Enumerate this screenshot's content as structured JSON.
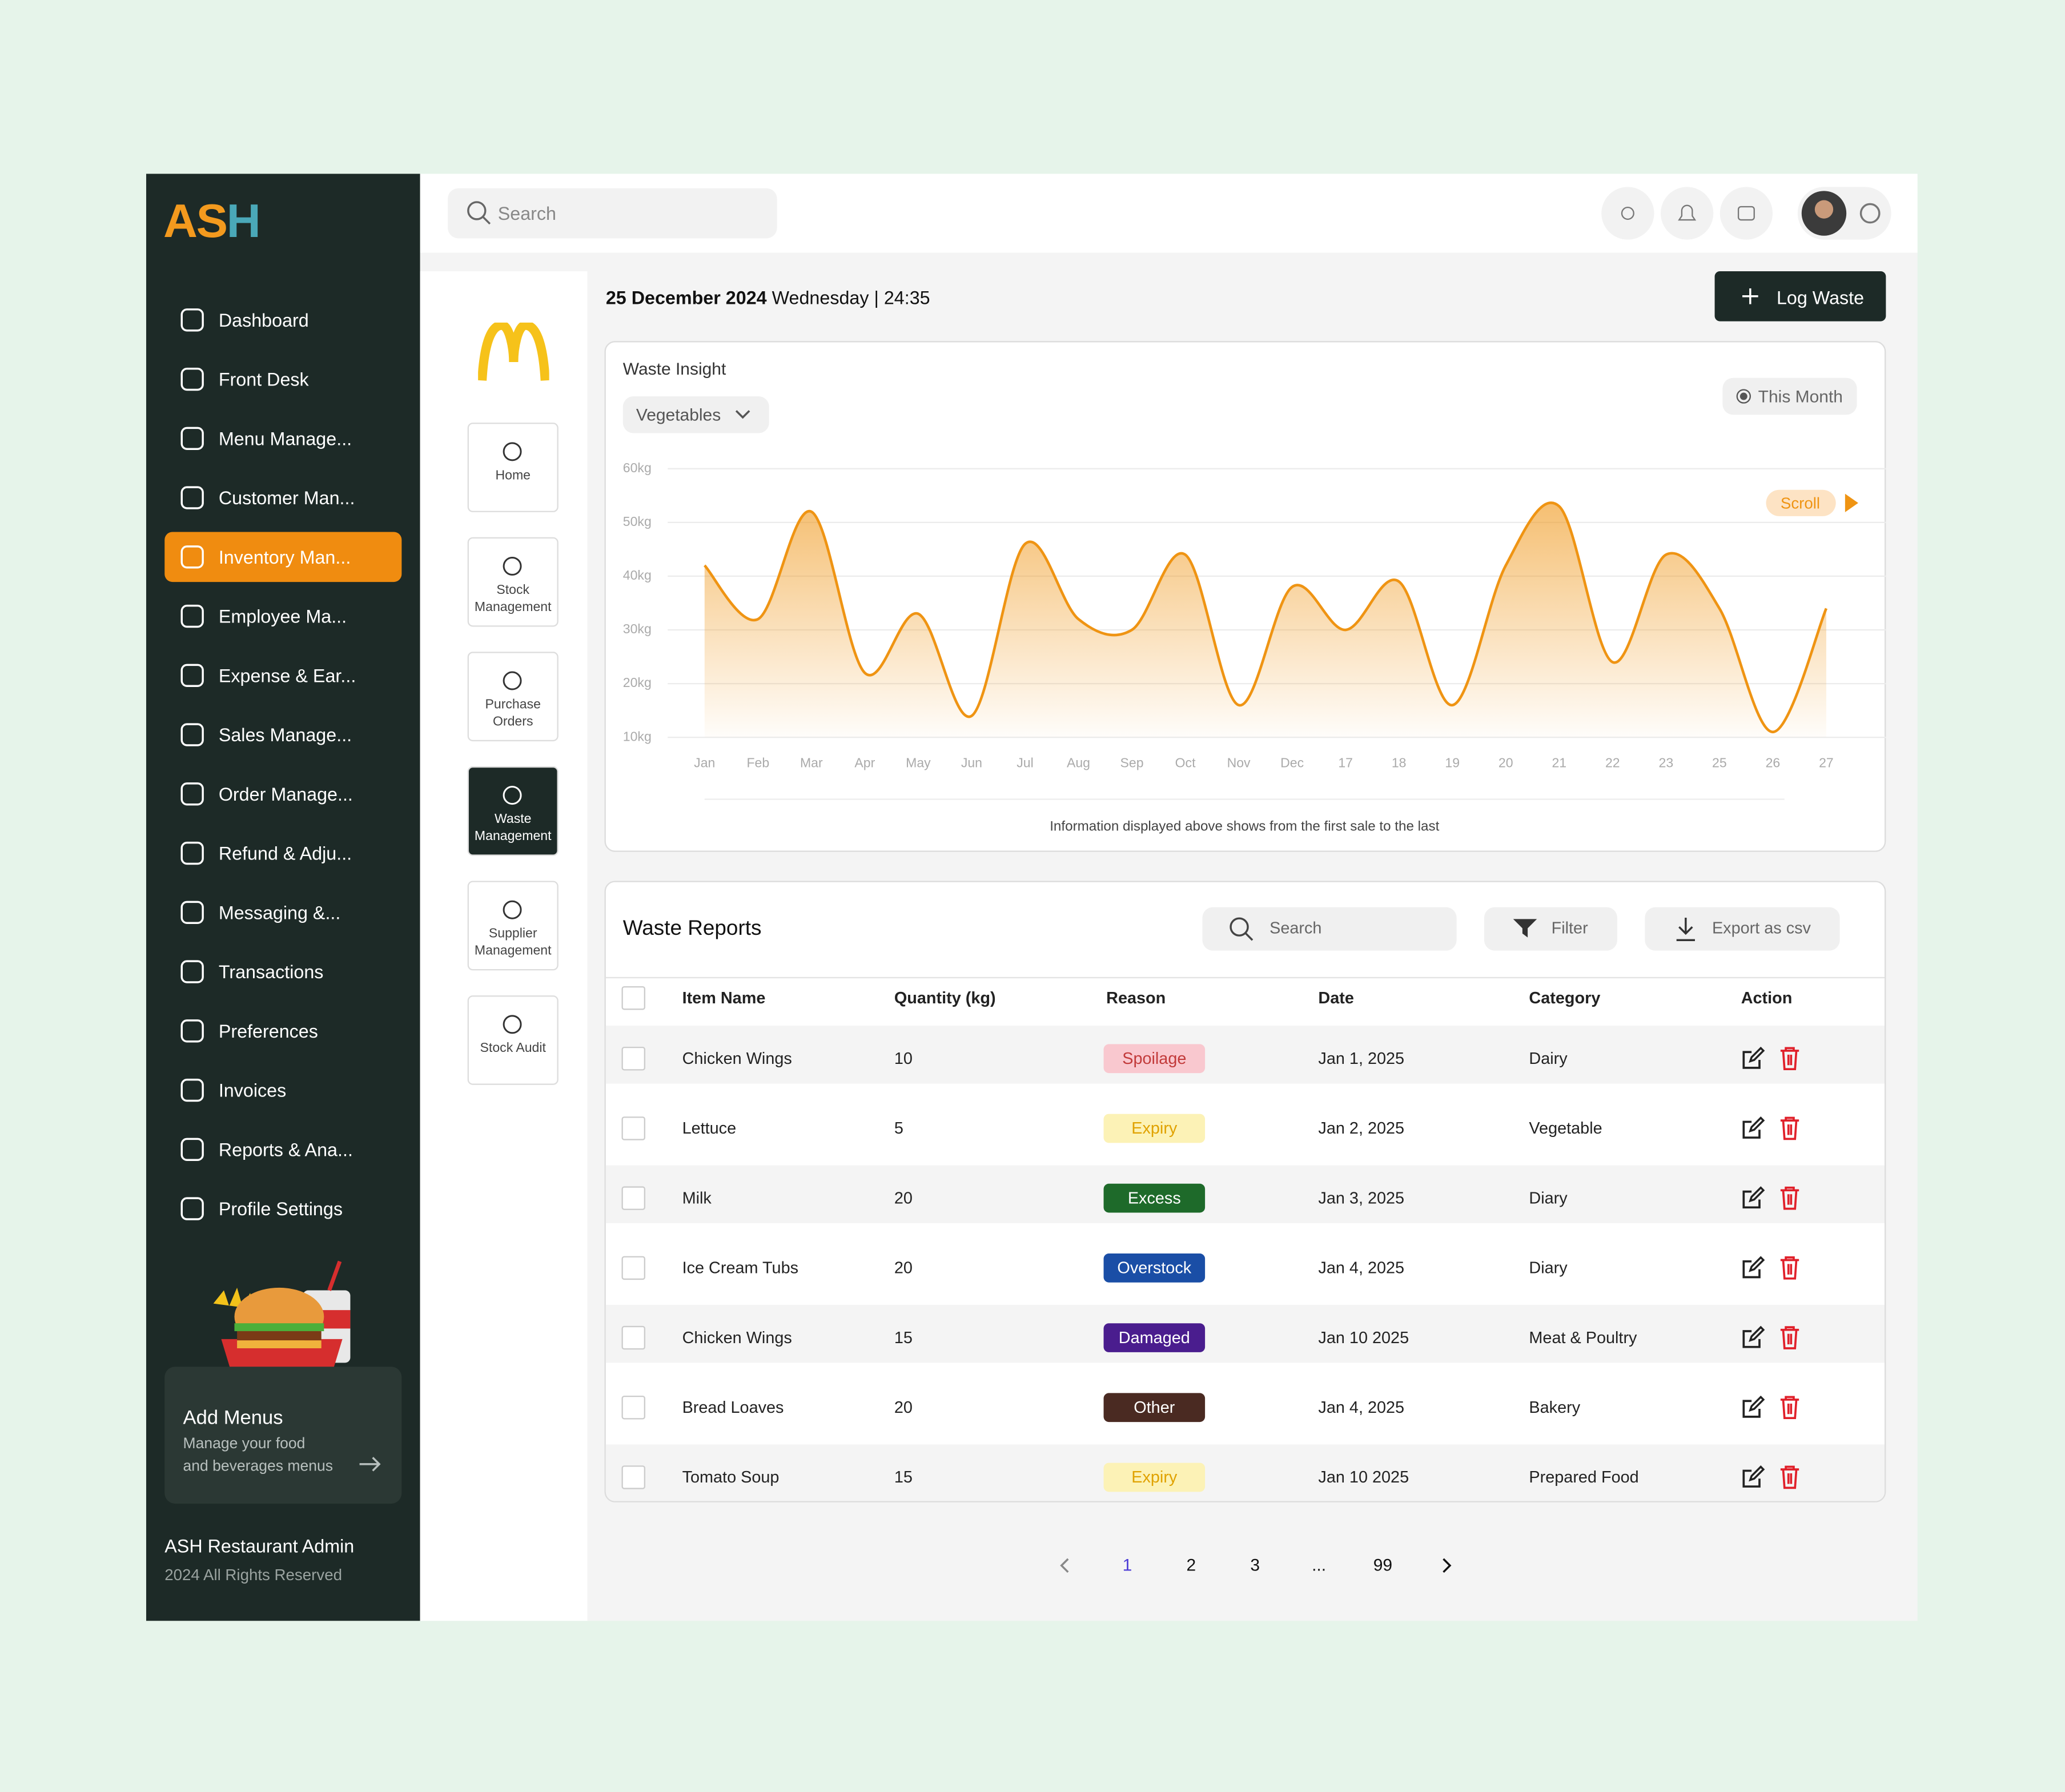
{
  "brand": {
    "logo_primary": "AS",
    "logo_accent": "H",
    "footer_title": "ASH Restaurant Admin",
    "footer_note": "2024 All Rights Reserved"
  },
  "nav": [
    "Dashboard",
    "Front Desk",
    "Menu Manage...",
    "Customer Man...",
    "Inventory Man...",
    "Employee Ma...",
    "Expense & Ear...",
    "Sales Manage...",
    "Order Manage...",
    "Refund & Adju...",
    "Messaging &...",
    "Transactions",
    "Preferences",
    "Invoices",
    "Reports & Ana...",
    "Profile Settings"
  ],
  "nav_active": 4,
  "promo": {
    "title": "Add Menus",
    "text": [
      "Manage your food",
      "and beverages menus"
    ]
  },
  "topbar": {
    "search_placeholder": "Search"
  },
  "modules": [
    "Home",
    "Stock Management",
    "Purchase Orders",
    "Waste Management",
    "Supplier Management",
    "Stock Audit"
  ],
  "module_active": 3,
  "header": {
    "date": "25 December 2024",
    "rest": "Wednesday | 24:35",
    "button": "Log Waste"
  },
  "waste_insight": {
    "type": "area",
    "title": "Waste Insight",
    "filter": "Vegetables",
    "period": "This Month",
    "scroll_label": "Scroll",
    "categories": [
      "Jan",
      "Feb",
      "Mar",
      "Apr",
      "May",
      "Jun",
      "Jul",
      "Aug",
      "Sep",
      "Oct",
      "Nov",
      "Dec",
      "17",
      "18",
      "19",
      "20",
      "21",
      "22",
      "23",
      "25",
      "26",
      "27"
    ],
    "values": [
      42,
      32,
      52,
      22,
      33,
      14,
      46,
      32,
      30,
      44,
      16,
      38,
      30,
      39,
      16,
      42,
      53,
      24,
      44,
      34,
      11,
      34
    ],
    "color": "#ef9413",
    "ylim": [
      10,
      60
    ],
    "yticks": [
      {
        "value": 10,
        "label": "10kg"
      },
      {
        "value": 20,
        "label": "20kg"
      },
      {
        "value": 30,
        "label": "30kg"
      },
      {
        "value": 40,
        "label": "40kg"
      },
      {
        "value": 50,
        "label": "50kg"
      },
      {
        "value": 60,
        "label": "60kg"
      }
    ],
    "grid": true,
    "note": "Information displayed above shows from the first sale to the last"
  },
  "reports": {
    "title": "Waste Reports",
    "search_placeholder": "Search",
    "filter": "Filter",
    "export": "Export as csv",
    "columns": [
      "Item Name",
      "Quantity (kg)",
      "Reason",
      "Date",
      "Category",
      "Action"
    ],
    "rows": [
      [
        "Chicken Wings",
        10,
        "Spoilage",
        "Jan 1, 2025",
        "Dairy"
      ],
      [
        "Lettuce",
        5,
        "Expiry",
        "Jan 2, 2025",
        "Vegetable"
      ],
      [
        "Milk",
        20,
        "Excess",
        "Jan 3, 2025",
        "Diary"
      ],
      [
        "Ice Cream Tubs",
        20,
        "Overstock",
        "Jan 4, 2025",
        "Diary"
      ],
      [
        "Chicken Wings",
        15,
        "Damaged",
        "Jan 10 2025",
        "Meat & Poultry"
      ],
      [
        "Bread Loaves",
        20,
        "Other",
        "Jan 4, 2025",
        "Bakery"
      ],
      [
        "Tomato Soup",
        15,
        "Expiry",
        "Jan 10 2025",
        "Prepared Food"
      ]
    ],
    "reason_colors": [
      {
        "bg": "#f9c8cf",
        "fg": "#c23a3a"
      },
      {
        "bg": "#fcf2b6",
        "fg": "#e0a200"
      },
      {
        "bg": "#1e6a2a",
        "fg": "#ffffff"
      },
      {
        "bg": "#1a4ea6",
        "fg": "#ffffff"
      },
      {
        "bg": "#4a1d8e",
        "fg": "#ffffff"
      },
      {
        "bg": "#4a2a22",
        "fg": "#ffffff"
      },
      {
        "bg": "#fcf2b6",
        "fg": "#e0a200"
      }
    ]
  },
  "pagination": {
    "pages": [
      "1",
      "2",
      "3",
      "...",
      "99"
    ],
    "current": 0
  }
}
